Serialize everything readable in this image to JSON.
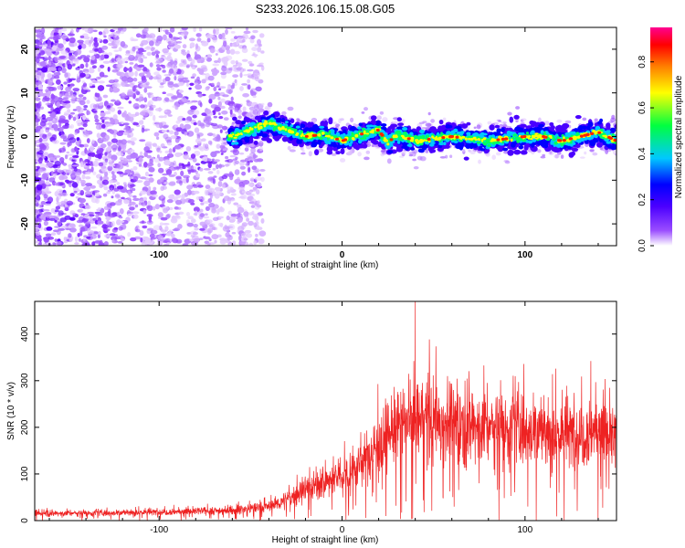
{
  "chart_data": [
    {
      "type": "heatmap",
      "title": "S233.2026.106.15.08.G05",
      "xlabel": "Height of straight line (km)",
      "ylabel": "Frequency (Hz)",
      "xlim": [
        -168,
        150
      ],
      "ylim": [
        -25,
        25
      ],
      "xticks": [
        -100,
        0,
        100
      ],
      "xtick_labels": [
        "-100",
        "0",
        "100"
      ],
      "yticks": [
        20,
        10,
        0,
        -10,
        -20
      ],
      "ytick_labels": [
        "20",
        "10",
        "0",
        "-10",
        "-20"
      ],
      "colorbar": {
        "label": "Normalized spectral amplitude",
        "range": [
          0.0,
          0.95
        ],
        "ticks": [
          0.0,
          0.2,
          0.4,
          0.6,
          0.8
        ],
        "tick_labels": [
          "0.0",
          "0.2",
          "0.4",
          "0.6",
          "0.8"
        ],
        "colors": [
          "#ffffff",
          "#7000ff",
          "#0000ff",
          "#00c8ff",
          "#00ff00",
          "#ffff00",
          "#ff8000",
          "#ff0000",
          "#ff00aa"
        ]
      },
      "ridge": {
        "x": [
          -60,
          -50,
          -40,
          -30,
          -20,
          -10,
          0,
          10,
          20,
          25,
          30,
          40,
          50,
          60,
          70,
          80,
          90,
          100,
          110,
          120,
          130,
          140,
          150
        ],
        "y": [
          0,
          1.5,
          3,
          1.5,
          0,
          0.5,
          -1,
          0.5,
          1.5,
          -1.5,
          0.5,
          -1,
          -0.5,
          0,
          -0.5,
          -1,
          -0.5,
          0,
          0,
          -1,
          0,
          1,
          -1
        ]
      }
    },
    {
      "type": "line",
      "title": "",
      "xlabel": "Height of straight line (km)",
      "ylabel": "SNR (10 * v/v)",
      "xlim": [
        -168,
        150
      ],
      "ylim": [
        0,
        470
      ],
      "xticks": [
        -100,
        0,
        100
      ],
      "xtick_labels": [
        "-100",
        "0",
        "100"
      ],
      "yticks": [
        0,
        100,
        200,
        300,
        400
      ],
      "ytick_labels": [
        "0",
        "100",
        "200",
        "300",
        "400"
      ],
      "line_color": "#ee2222",
      "envelope": {
        "x": [
          -168,
          -120,
          -80,
          -60,
          -40,
          -30,
          -20,
          -10,
          0,
          10,
          20,
          30,
          40,
          50,
          60,
          70,
          80,
          90,
          100,
          110,
          120,
          130,
          140,
          150
        ],
        "y": [
          15,
          17,
          20,
          22,
          30,
          45,
          70,
          80,
          95,
          120,
          165,
          200,
          220,
          215,
          210,
          205,
          200,
          200,
          200,
          190,
          185,
          185,
          200,
          170
        ]
      },
      "peak_value": 470
    }
  ]
}
